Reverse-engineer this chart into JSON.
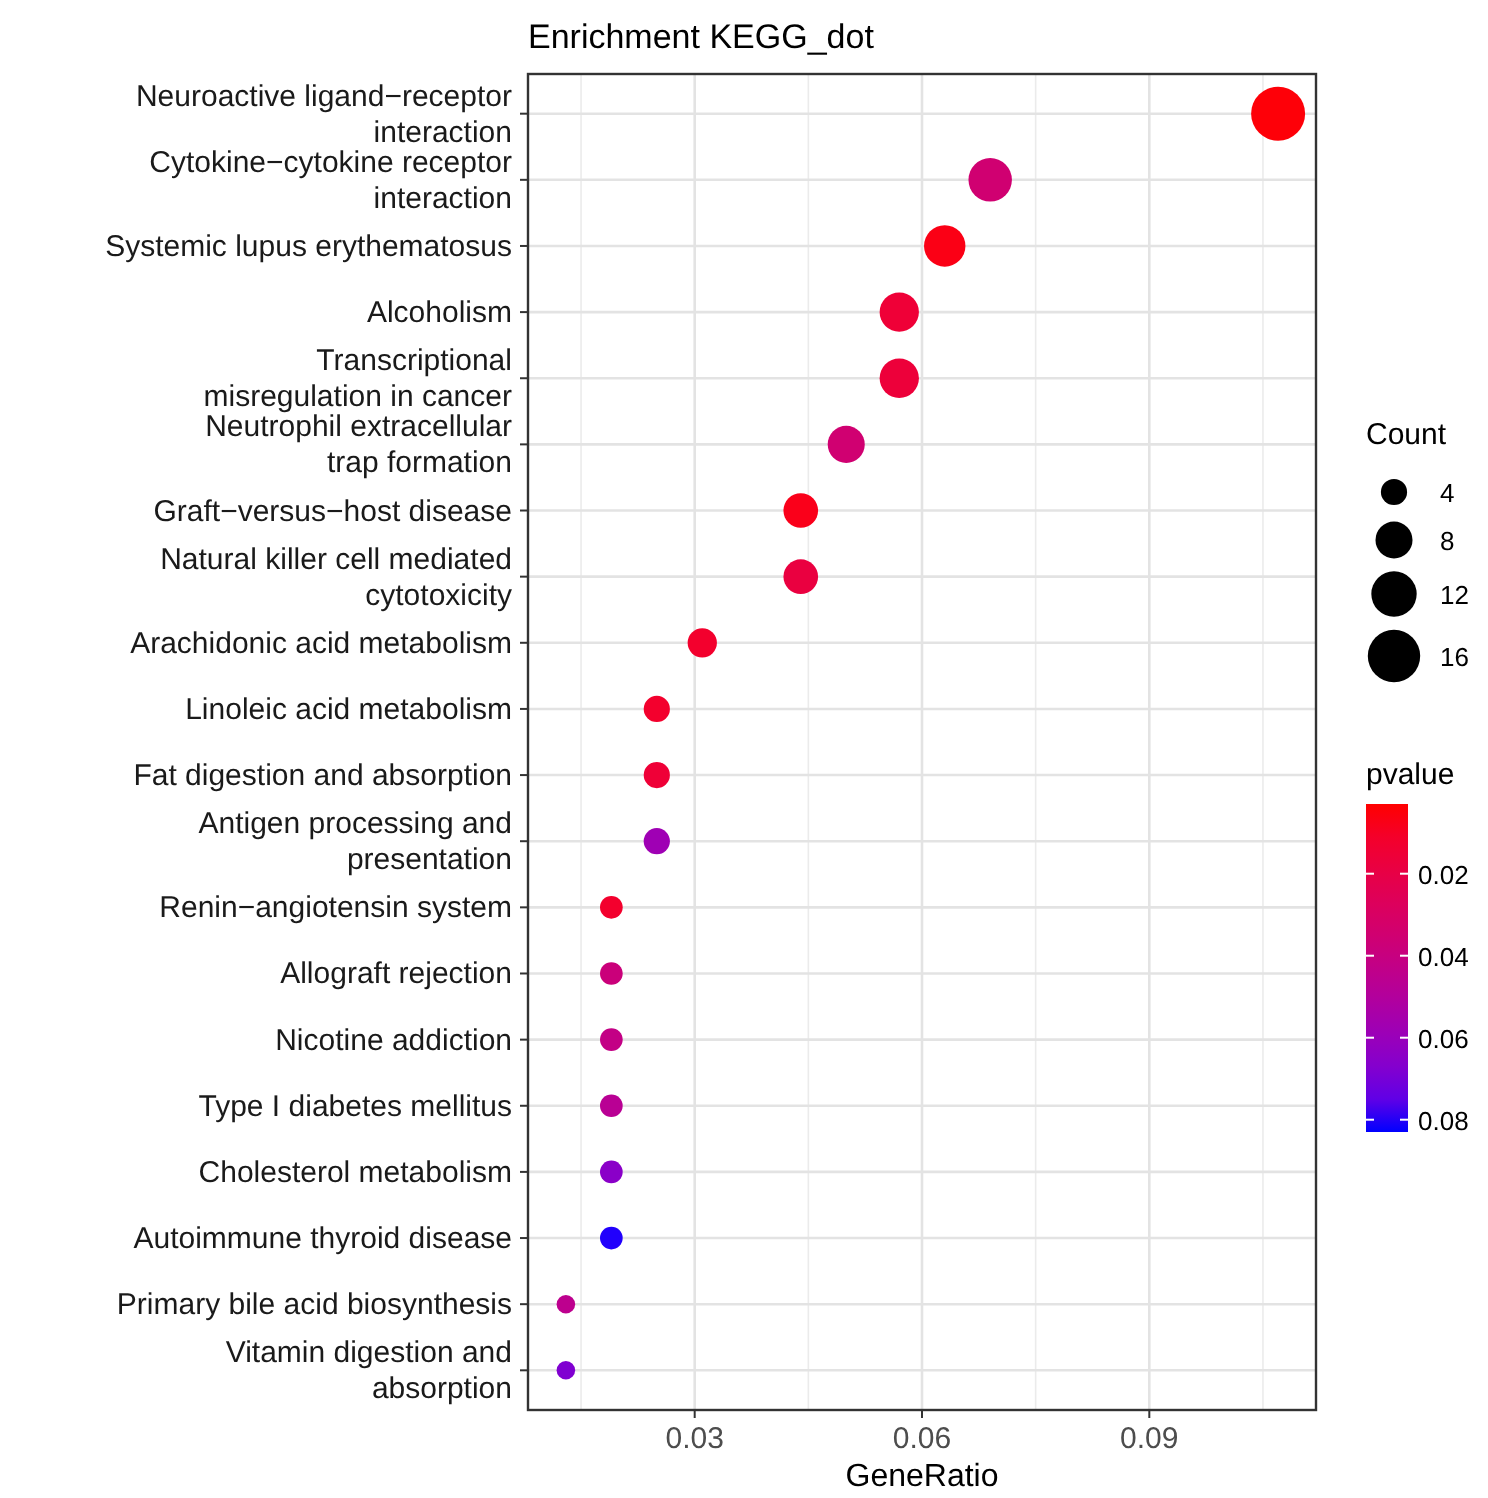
{
  "chart_data": {
    "type": "bubble",
    "title": "Enrichment KEGG_dot",
    "xlabel": "GeneRatio",
    "orientation": "horizontal",
    "categories": [
      "Neuroactive ligand−receptor\ninteraction",
      "Cytokine−cytokine receptor\ninteraction",
      "Systemic lupus erythematosus",
      "Alcoholism",
      "Transcriptional\nmisregulation in cancer",
      "Neutrophil extracellular\ntrap formation",
      "Graft−versus−host disease",
      "Natural killer cell mediated\ncytotoxicity",
      "Arachidonic acid metabolism",
      "Linoleic acid metabolism",
      "Fat digestion and absorption",
      "Antigen processing and\npresentation",
      "Renin−angiotensin system",
      "Allograft rejection",
      "Nicotine addiction",
      "Type I diabetes mellitus",
      "Cholesterol metabolism",
      "Autoimmune thyroid disease",
      "Primary bile acid biosynthesis",
      "Vitamin digestion and\nabsorption"
    ],
    "values": [
      0.107,
      0.069,
      0.063,
      0.057,
      0.057,
      0.05,
      0.044,
      0.044,
      0.031,
      0.025,
      0.025,
      0.025,
      0.019,
      0.019,
      0.019,
      0.019,
      0.019,
      0.019,
      0.013,
      0.013
    ],
    "sizes": [
      17,
      11,
      10,
      9,
      9,
      8,
      7,
      7,
      5,
      4,
      4,
      4,
      3,
      3,
      3,
      3,
      3,
      3,
      2,
      2
    ],
    "size_legend": [
      4,
      8,
      12,
      16
    ],
    "cvalues": [
      0.004,
      0.035,
      0.006,
      0.015,
      0.016,
      0.035,
      0.007,
      0.018,
      0.012,
      0.012,
      0.015,
      0.058,
      0.012,
      0.038,
      0.042,
      0.047,
      0.065,
      0.082,
      0.045,
      0.068
    ],
    "clim": [
      0.003,
      0.083
    ],
    "cticks": [
      0.02,
      0.04,
      0.06,
      0.08
    ],
    "clabel": "pvalue",
    "legend_title": "Count",
    "xlim": [
      0.008,
      0.112
    ],
    "xticks": [
      0.03,
      0.06,
      0.09
    ],
    "grid": true
  }
}
